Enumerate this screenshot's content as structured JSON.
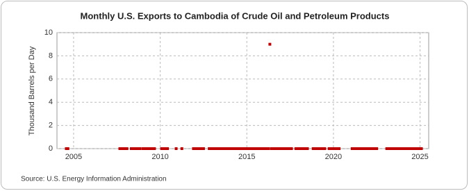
{
  "chart_data": {
    "type": "scatter",
    "title": "Monthly U.S. Exports to Cambodia of Crude Oil and Petroleum Products",
    "y_label": "Thousand Barrels per Day",
    "source": "Source: U.S. Energy Information Administration",
    "color": "#c00000",
    "grid": true,
    "xlim": [
      2004.04,
      2025.5
    ],
    "xticks": [
      2005,
      2010,
      2015,
      2020,
      2025
    ],
    "ylim": [
      0,
      10
    ],
    "yticks": [
      0,
      2,
      4,
      6,
      8,
      10
    ],
    "x": [
      2004.58,
      2004.67,
      2007.67,
      2007.75,
      2007.83,
      2007.92,
      2008,
      2008.08,
      2008.33,
      2008.42,
      2008.5,
      2008.58,
      2008.67,
      2008.75,
      2008.83,
      2009,
      2009.08,
      2009.17,
      2009.25,
      2009.33,
      2009.42,
      2009.5,
      2009.58,
      2009.67,
      2010.08,
      2010.17,
      2010.25,
      2010.33,
      2010.42,
      2010.92,
      2011.25,
      2011.92,
      2012,
      2012.08,
      2012.17,
      2012.25,
      2012.33,
      2012.42,
      2012.5,
      2012.83,
      2012.92,
      2013,
      2013.08,
      2013.17,
      2013.25,
      2013.33,
      2013.42,
      2013.5,
      2013.58,
      2013.67,
      2013.75,
      2013.83,
      2013.92,
      2014,
      2014.08,
      2014.17,
      2014.25,
      2014.33,
      2014.42,
      2014.5,
      2014.58,
      2014.67,
      2014.75,
      2014.83,
      2014.92,
      2015,
      2015.08,
      2015.17,
      2015.25,
      2015.33,
      2015.42,
      2015.5,
      2015.58,
      2015.67,
      2015.75,
      2015.83,
      2015.92,
      2016,
      2016.08,
      2016.17,
      2016.25,
      2016.33,
      2016.42,
      2016.5,
      2016.58,
      2016.67,
      2016.75,
      2016.83,
      2016.92,
      2017,
      2017.08,
      2017.17,
      2017.25,
      2017.33,
      2017.42,
      2017.5,
      2017.58,
      2017.83,
      2017.92,
      2018,
      2018.08,
      2018.17,
      2018.25,
      2018.33,
      2018.42,
      2018.5,
      2018.83,
      2018.92,
      2019,
      2019.08,
      2019.17,
      2019.25,
      2019.33,
      2019.42,
      2019.5,
      2019.75,
      2019.83,
      2019.92,
      2020,
      2020.08,
      2020.17,
      2020.25,
      2020.33,
      2021.08,
      2021.17,
      2021.25,
      2021.33,
      2021.42,
      2021.5,
      2021.58,
      2021.67,
      2021.75,
      2021.83,
      2021.92,
      2022,
      2022.08,
      2022.17,
      2022.25,
      2022.33,
      2022.42,
      2022.5,
      2023.08,
      2023.17,
      2023.25,
      2023.33,
      2023.42,
      2023.5,
      2023.58,
      2023.67,
      2023.75,
      2023.83,
      2023.92,
      2024,
      2024.08,
      2024.17,
      2024.25,
      2024.33,
      2024.42,
      2024.5,
      2024.58,
      2024.67,
      2024.75,
      2024.83,
      2024.92,
      2025,
      2025.08
    ],
    "values": [
      0,
      0,
      0,
      0,
      0,
      0,
      0,
      0,
      0,
      0,
      0,
      0,
      0,
      0,
      0,
      0,
      0,
      0,
      0,
      0,
      0,
      0,
      0,
      0,
      0,
      0,
      0,
      0,
      0,
      0,
      0,
      0,
      0,
      0,
      0,
      0,
      0,
      0,
      0,
      0,
      0,
      0,
      0,
      0,
      0,
      0,
      0,
      0,
      0,
      0,
      0,
      0,
      0,
      0,
      0,
      0,
      0,
      0,
      0,
      0,
      0,
      0,
      0,
      0,
      0,
      0,
      0,
      0,
      0,
      0,
      0,
      0,
      0,
      0,
      0,
      0,
      0,
      0,
      0,
      0,
      0,
      9,
      0,
      0,
      0,
      0,
      0,
      0,
      0,
      0,
      0,
      0,
      0,
      0,
      0,
      0,
      0,
      0,
      0,
      0,
      0,
      0,
      0,
      0,
      0,
      0,
      0,
      0,
      0,
      0,
      0,
      0,
      0,
      0,
      0,
      0,
      0,
      0,
      0,
      0,
      0,
      0,
      0,
      0,
      0,
      0,
      0,
      0,
      0,
      0,
      0,
      0,
      0,
      0,
      0,
      0,
      0,
      0,
      0,
      0,
      0,
      0,
      0,
      0,
      0,
      0,
      0,
      0,
      0,
      0,
      0,
      0,
      0,
      0,
      0,
      0,
      0,
      0,
      0,
      0,
      0,
      0,
      0,
      0,
      0,
      0
    ]
  }
}
